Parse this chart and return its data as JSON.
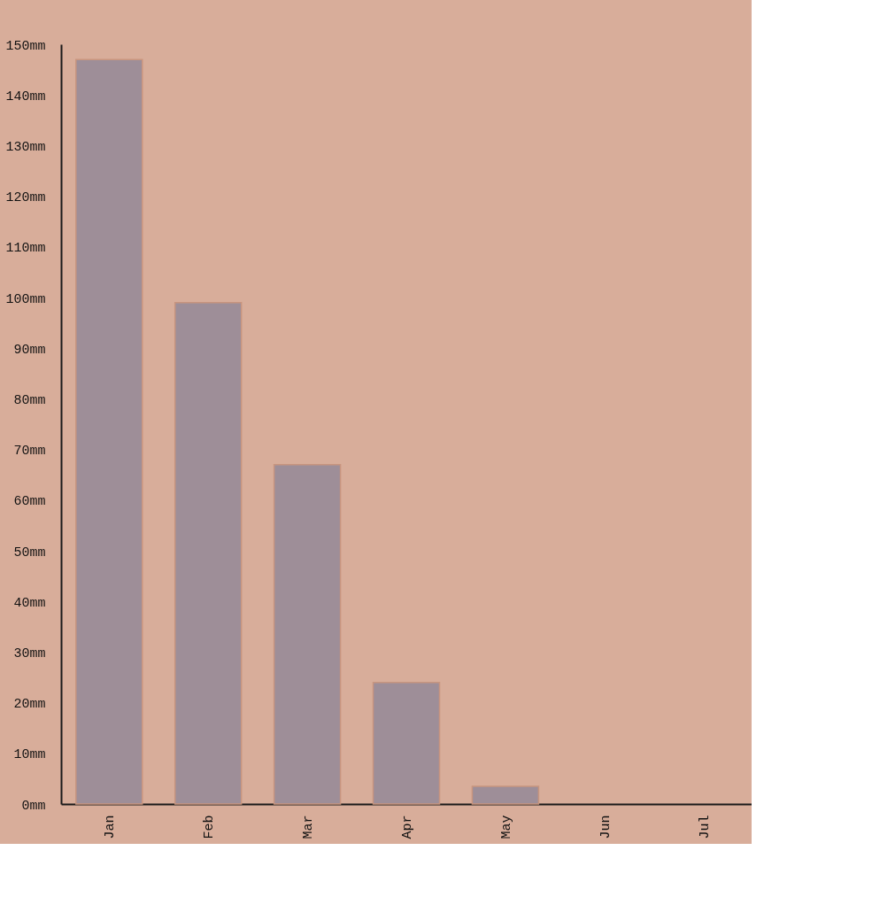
{
  "chart_data": {
    "type": "bar",
    "categories": [
      "Jan",
      "Feb",
      "Mar",
      "Apr",
      "May",
      "Jun",
      "Jul"
    ],
    "values": [
      147,
      99,
      67,
      24,
      3.5,
      0,
      0
    ],
    "color": "#9e8e98",
    "ylim": [
      0,
      150
    ],
    "yticks": [
      {
        "value": 0,
        "label": "0mm"
      },
      {
        "value": 10,
        "label": "10mm"
      },
      {
        "value": 20,
        "label": "20mm"
      },
      {
        "value": 30,
        "label": "30mm"
      },
      {
        "value": 40,
        "label": "40mm"
      },
      {
        "value": 50,
        "label": "50mm"
      },
      {
        "value": 60,
        "label": "60mm"
      },
      {
        "value": 70,
        "label": "70mm"
      },
      {
        "value": 80,
        "label": "80mm"
      },
      {
        "value": 90,
        "label": "90mm"
      },
      {
        "value": 100,
        "label": "100mm"
      },
      {
        "value": 110,
        "label": "110mm"
      },
      {
        "value": 120,
        "label": "120mm"
      },
      {
        "value": 130,
        "label": "130mm"
      },
      {
        "value": 140,
        "label": "140mm"
      },
      {
        "value": 150,
        "label": "150mm"
      }
    ],
    "grid": false
  }
}
